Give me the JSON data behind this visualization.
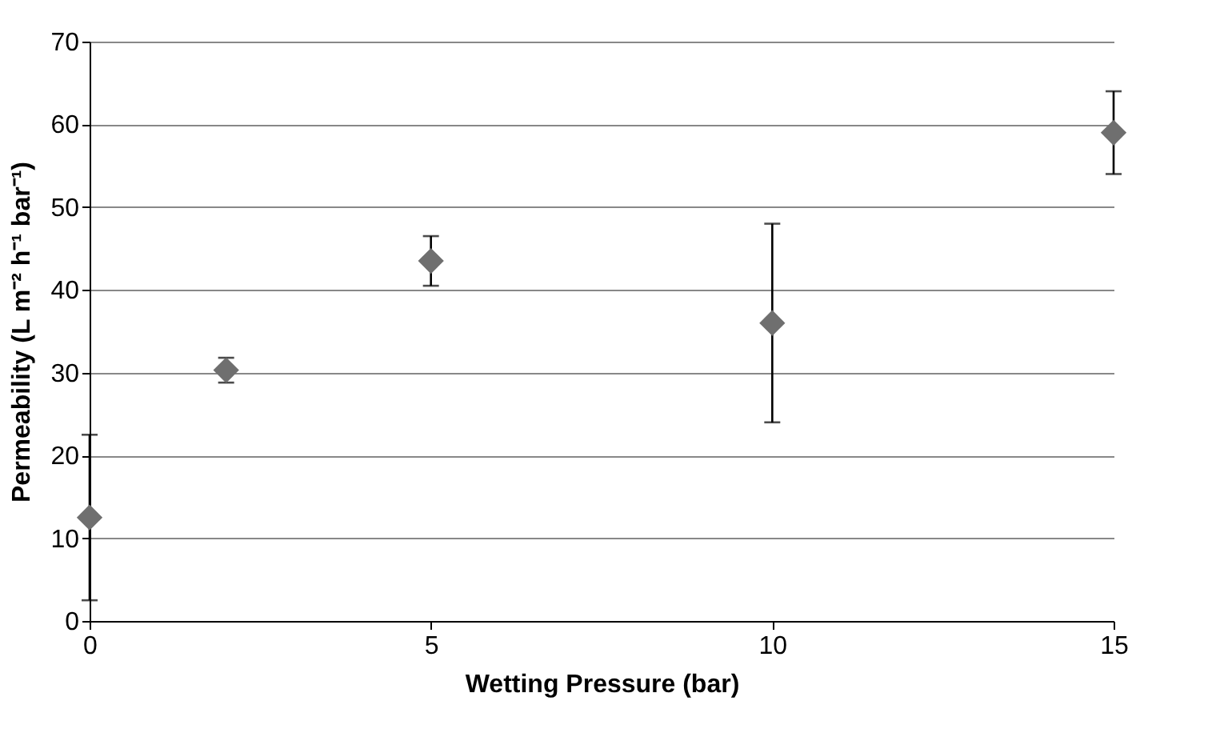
{
  "chart_data": {
    "type": "scatter",
    "xlabel": "Wetting Pressure (bar)",
    "ylabel": "Permeability (L m⁻² h⁻¹ bar⁻¹)",
    "x": [
      0,
      2,
      5,
      10,
      15
    ],
    "series": [
      {
        "color": "#6f6f6f",
        "values": [
          12.5,
          30.3,
          43.5,
          36,
          59
        ],
        "errors": [
          10,
          1.5,
          3,
          12,
          5
        ]
      }
    ],
    "xlim": [
      0,
      15
    ],
    "xticks": [
      0,
      5,
      10,
      15
    ],
    "ylim": [
      0,
      70
    ],
    "yticks": [
      0,
      10,
      20,
      30,
      40,
      50,
      60,
      70
    ],
    "grid": "y",
    "marker": "diamond"
  }
}
